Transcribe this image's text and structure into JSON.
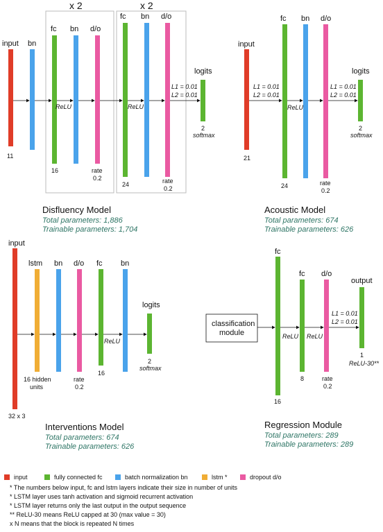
{
  "colors": {
    "input": "#e03c28",
    "fc": "#5cb531",
    "bn": "#4aa3eb",
    "lstm": "#f0ad35",
    "dropout": "#ea5aa2",
    "stat_text": "#2e7565",
    "box_border": "#bbbbbb"
  },
  "disfluency": {
    "repeat1": "x 2",
    "repeat2": "x 2",
    "input_label": "input",
    "bn_label": "bn",
    "fc_label": "fc",
    "bn2_label": "bn",
    "do_label": "d/o",
    "fc2_label": "fc",
    "bn3_label": "bn",
    "do2_label": "d/o",
    "logits_label": "logits",
    "relu1": "ReLU",
    "relu2": "ReLU",
    "reg1": "L1 = 0.01",
    "reg2": "L2 = 0.01",
    "input_size": "11",
    "fc_size": "16",
    "rate1": "rate",
    "rate1_val": "0.2",
    "fc2_size": "24",
    "rate2": "rate",
    "rate2_val": "0.2",
    "out_size": "2",
    "out_act": "softmax",
    "title": "Disfluency Model",
    "total": "Total parameters: 1,886",
    "trainable": "Trainable parameters: 1,704"
  },
  "acoustic": {
    "input_label": "input",
    "fc_label": "fc",
    "bn_label": "bn",
    "do_label": "d/o",
    "logits_label": "logits",
    "reg1": "L1 = 0.01",
    "reg2": "L2 = 0.01",
    "reg3": "L1 = 0.01",
    "reg4": "L2 = 0.01",
    "relu": "ReLU",
    "input_size": "21",
    "fc_size": "24",
    "rate": "rate",
    "rate_val": "0.2",
    "out_size": "2",
    "out_act": "softmax",
    "title": "Acoustic Model",
    "total": "Total parameters: 674",
    "trainable": "Trainable parameters: 626"
  },
  "interventions": {
    "input_label": "input",
    "lstm_label": "lstm",
    "bn_label": "bn",
    "do_label": "d/o",
    "fc_label": "fc",
    "bn2_label": "bn",
    "logits_label": "logits",
    "relu": "ReLU",
    "input_size": "32 x 3",
    "lstm_size1": "16 hidden",
    "lstm_size2": "units",
    "rate": "rate",
    "rate_val": "0.2",
    "fc_size": "16",
    "out_size": "2",
    "out_act": "softmax",
    "title": "Interventions Model",
    "total": "Total parameters: 674",
    "trainable": "Trainable parameters: 626"
  },
  "regression": {
    "module_line1": "classification",
    "module_line2": "module",
    "fc_label": "fc",
    "fc2_label": "fc",
    "do_label": "d/o",
    "output_label": "output",
    "relu1": "ReLU",
    "relu2": "ReLU",
    "reg1": "L1 = 0.01",
    "reg2": "L2 = 0.01",
    "fc_size": "16",
    "fc2_size": "8",
    "rate": "rate",
    "rate_val": "0.2",
    "out_size": "1",
    "out_act": "ReLU-30**",
    "title": "Regression Module",
    "total": "Total parameters: 289",
    "trainable": "Trainable parameters: 289"
  },
  "legend": {
    "items": [
      {
        "label": "input",
        "color": "#e03c28"
      },
      {
        "label": "fully connected fc",
        "color": "#5cb531"
      },
      {
        "label": "batch normalization bn",
        "color": "#4aa3eb"
      },
      {
        "label": "lstm *",
        "color": "#f0ad35"
      },
      {
        "label": "dropout d/o",
        "color": "#ea5aa2"
      }
    ],
    "notes": [
      "* The numbers below input, fc and lstm layers indicate their size in number of units",
      "* LSTM layer uses tanh activation and sigmoid recurrent activation",
      "* LSTM layer returns only the last output in the output sequence",
      "** ReLU-30 means ReLU capped at 30 (max value = 30)",
      "x N means that the block is repeated N times"
    ]
  }
}
